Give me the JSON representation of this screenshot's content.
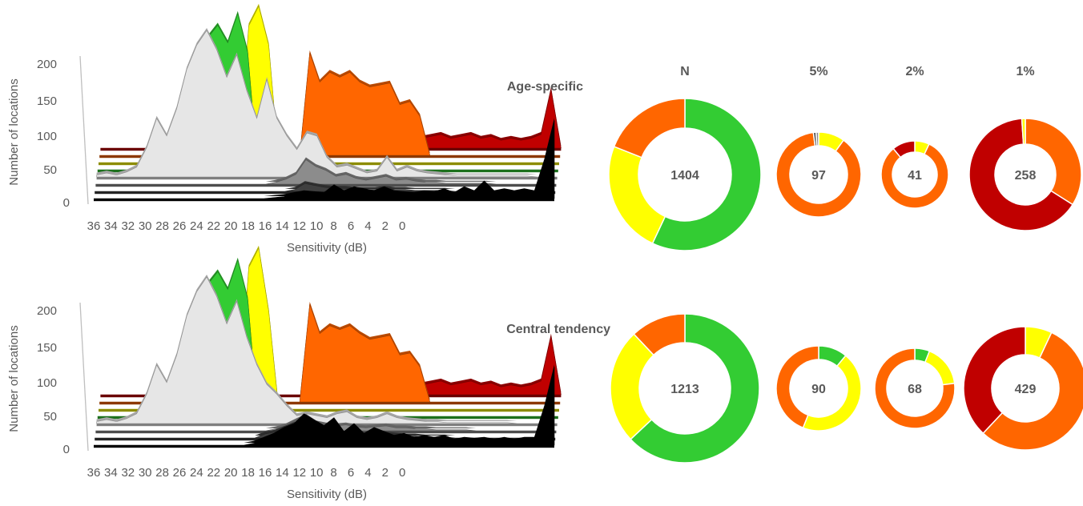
{
  "colors": {
    "green": "#33cc33",
    "yellow": "#ffff00",
    "orange": "#ff6600",
    "darkred": "#c00000",
    "lightgray": "#e6e6e6",
    "gray": "#8c8c8c",
    "darkgray": "#404040",
    "black": "#000000",
    "green_line": "#339933",
    "yellow_line": "#b8b800",
    "orange_line": "#c05000",
    "red_line": "#900000"
  },
  "column_headers": [
    "N",
    "5%",
    "2%",
    "1%"
  ],
  "chart_data": [
    {
      "type": "area",
      "title": "Age-specific",
      "xlabel": "Sensitivity (dB)",
      "ylabel": "Number of locations",
      "x_ticks": [
        "36",
        "34",
        "32",
        "30",
        "28",
        "26",
        "24",
        "22",
        "20",
        "18",
        "16",
        "14",
        "12",
        "10",
        "8",
        "6",
        "4",
        "2",
        "0"
      ],
      "y_ticks": [
        "0",
        "50",
        "100",
        "150",
        "200"
      ],
      "ylim": [
        0,
        200
      ],
      "series": [
        {
          "color": "darkred",
          "values": [
            0,
            0,
            0,
            0,
            0,
            0,
            0,
            0,
            0,
            0,
            0,
            0,
            0,
            0,
            0,
            0,
            0,
            0,
            0,
            0,
            0,
            0,
            0,
            0,
            0,
            0,
            0,
            0,
            0,
            2,
            8,
            12,
            10,
            12,
            14,
            10,
            12,
            14,
            10,
            12,
            8,
            10,
            8,
            10,
            14,
            60,
            0
          ]
        },
        {
          "color": "orange",
          "values": [
            0,
            0,
            0,
            0,
            0,
            0,
            0,
            0,
            0,
            0,
            0,
            0,
            0,
            0,
            0,
            0,
            0,
            0,
            0,
            0,
            0,
            105,
            75,
            85,
            80,
            85,
            75,
            70,
            72,
            74,
            52,
            55,
            40,
            0,
            0,
            0,
            0,
            0,
            0,
            0,
            0,
            0,
            0,
            0,
            0,
            0,
            0
          ]
        },
        {
          "color": "yellow",
          "values": [
            0,
            0,
            0,
            0,
            0,
            0,
            0,
            0,
            0,
            0,
            0,
            0,
            0,
            0,
            0,
            140,
            160,
            120,
            0,
            0,
            0,
            0,
            0,
            0,
            0,
            0,
            0,
            0,
            0,
            0,
            0,
            0,
            0,
            0,
            0,
            0,
            0,
            0,
            0,
            0,
            0,
            0,
            0,
            0,
            0,
            0,
            0
          ]
        },
        {
          "color": "green",
          "values": [
            0,
            0,
            0,
            0,
            0,
            0,
            25,
            15,
            40,
            80,
            108,
            135,
            148,
            130,
            160,
            120,
            0,
            0,
            0,
            0,
            0,
            0,
            0,
            0,
            0,
            0,
            0,
            0,
            0,
            0,
            0,
            0,
            0,
            0,
            0,
            0,
            0,
            0,
            0,
            0,
            0,
            0,
            0,
            0,
            0,
            0,
            0
          ]
        },
        {
          "color": "lightgray",
          "values": [
            2,
            4,
            2,
            5,
            10,
            30,
            60,
            42,
            70,
            110,
            135,
            150,
            130,
            102,
            125,
            88,
            60,
            100,
            60,
            42,
            28,
            45,
            42,
            20,
            10,
            12,
            8,
            4,
            6,
            20,
            6,
            10,
            6,
            4,
            3,
            2,
            1,
            1,
            1,
            1,
            1,
            1,
            1,
            1,
            0,
            0,
            0
          ]
        },
        {
          "color": "gray",
          "values": [
            0,
            0,
            0,
            0,
            0,
            0,
            0,
            0,
            0,
            0,
            0,
            0,
            0,
            0,
            0,
            0,
            0,
            0,
            2,
            5,
            10,
            25,
            18,
            14,
            8,
            10,
            6,
            4,
            6,
            8,
            4,
            5,
            3,
            2,
            2,
            1,
            1,
            1,
            1,
            1,
            0,
            0,
            0,
            0,
            0,
            0,
            0
          ]
        },
        {
          "color": "darkgray",
          "values": [
            0,
            0,
            0,
            0,
            0,
            0,
            0,
            0,
            0,
            0,
            0,
            0,
            0,
            0,
            0,
            0,
            0,
            0,
            0,
            0,
            2,
            8,
            6,
            4,
            3,
            3,
            2,
            2,
            2,
            3,
            2,
            2,
            1,
            1,
            1,
            1,
            0,
            0,
            0,
            0,
            0,
            0,
            0,
            0,
            0,
            0,
            0
          ]
        },
        {
          "color": "black",
          "values": [
            0,
            0,
            0,
            0,
            0,
            0,
            0,
            0,
            0,
            0,
            0,
            0,
            0,
            0,
            0,
            0,
            0,
            0,
            1,
            2,
            4,
            6,
            5,
            4,
            12,
            6,
            10,
            8,
            6,
            10,
            6,
            5,
            4,
            6,
            5,
            8,
            4,
            10,
            6,
            16,
            6,
            8,
            6,
            8,
            6,
            38,
            80
          ]
        }
      ],
      "rings": [
        {
          "label": "1404",
          "slices": [
            {
              "color": "green",
              "value": 57
            },
            {
              "color": "yellow",
              "value": 24
            },
            {
              "color": "orange",
              "value": 19
            }
          ]
        },
        {
          "label": "97",
          "slices": [
            {
              "color": "yellow",
              "value": 10
            },
            {
              "color": "orange",
              "value": 88
            },
            {
              "color": "darkgray",
              "value": 1
            },
            {
              "color": "gray",
              "value": 1
            }
          ]
        },
        {
          "label": "41",
          "slices": [
            {
              "color": "yellow",
              "value": 7
            },
            {
              "color": "orange",
              "value": 82
            },
            {
              "color": "darkred",
              "value": 11
            }
          ]
        },
        {
          "label": "258",
          "slices": [
            {
              "color": "orange",
              "value": 34
            },
            {
              "color": "darkred",
              "value": 65
            },
            {
              "color": "yellow",
              "value": 1
            }
          ]
        }
      ]
    },
    {
      "type": "area",
      "title": "Central tendency",
      "xlabel": "Sensitivity (dB)",
      "ylabel": "Number of locations",
      "x_ticks": [
        "36",
        "34",
        "32",
        "30",
        "28",
        "26",
        "24",
        "22",
        "20",
        "18",
        "16",
        "14",
        "12",
        "10",
        "8",
        "6",
        "4",
        "2",
        "0"
      ],
      "y_ticks": [
        "0",
        "50",
        "100",
        "150",
        "200"
      ],
      "ylim": [
        0,
        200
      ],
      "series": [
        {
          "color": "darkred",
          "values": [
            0,
            0,
            0,
            0,
            0,
            0,
            0,
            0,
            0,
            0,
            0,
            0,
            0,
            0,
            0,
            0,
            0,
            0,
            0,
            0,
            0,
            0,
            0,
            0,
            0,
            0,
            0,
            0,
            0,
            2,
            8,
            12,
            10,
            12,
            14,
            10,
            12,
            14,
            10,
            12,
            8,
            10,
            8,
            10,
            14,
            60,
            0
          ]
        },
        {
          "color": "orange",
          "values": [
            0,
            0,
            0,
            0,
            0,
            0,
            0,
            0,
            0,
            0,
            0,
            0,
            0,
            0,
            0,
            0,
            0,
            0,
            0,
            0,
            0,
            100,
            70,
            78,
            74,
            78,
            70,
            64,
            66,
            68,
            48,
            50,
            36,
            0,
            0,
            0,
            0,
            0,
            0,
            0,
            0,
            0,
            0,
            0,
            0,
            0,
            0
          ]
        },
        {
          "color": "yellow",
          "values": [
            0,
            0,
            0,
            0,
            0,
            0,
            0,
            0,
            0,
            0,
            0,
            0,
            0,
            0,
            0,
            145,
            165,
            100,
            0,
            0,
            0,
            0,
            0,
            0,
            0,
            0,
            0,
            0,
            0,
            0,
            0,
            0,
            0,
            0,
            0,
            0,
            0,
            0,
            0,
            0,
            0,
            0,
            0,
            0,
            0,
            0,
            0
          ]
        },
        {
          "color": "green",
          "values": [
            0,
            0,
            0,
            0,
            0,
            0,
            25,
            15,
            40,
            80,
            108,
            135,
            148,
            130,
            160,
            120,
            0,
            0,
            0,
            0,
            0,
            0,
            0,
            0,
            0,
            0,
            0,
            0,
            0,
            0,
            0,
            0,
            0,
            0,
            0,
            0,
            0,
            0,
            0,
            0,
            0,
            0,
            0,
            0,
            0,
            0,
            0
          ]
        },
        {
          "color": "lightgray",
          "values": [
            2,
            4,
            2,
            5,
            10,
            30,
            60,
            42,
            70,
            110,
            135,
            150,
            130,
            102,
            125,
            88,
            60,
            40,
            30,
            18,
            8,
            10,
            8,
            6,
            10,
            12,
            6,
            4,
            6,
            10,
            6,
            4,
            3,
            2,
            2,
            1,
            1,
            1,
            1,
            1,
            1,
            1,
            0,
            0,
            0,
            0,
            0
          ]
        },
        {
          "color": "gray",
          "values": [
            0,
            0,
            0,
            0,
            0,
            0,
            0,
            0,
            0,
            0,
            0,
            0,
            0,
            0,
            0,
            0,
            0,
            0,
            2,
            5,
            10,
            15,
            8,
            6,
            5,
            6,
            4,
            3,
            4,
            5,
            3,
            3,
            2,
            2,
            1,
            1,
            1,
            1,
            0,
            0,
            0,
            0,
            0,
            0,
            0,
            0,
            0
          ]
        },
        {
          "color": "darkgray",
          "values": [
            0,
            0,
            0,
            0,
            0,
            0,
            0,
            0,
            0,
            0,
            0,
            0,
            0,
            0,
            0,
            0,
            0,
            4,
            6,
            10,
            14,
            12,
            8,
            6,
            4,
            4,
            3,
            3,
            3,
            4,
            3,
            2,
            2,
            1,
            1,
            1,
            0,
            0,
            0,
            0,
            0,
            0,
            0,
            0,
            0,
            0,
            0
          ]
        },
        {
          "color": "black",
          "values": [
            0,
            0,
            0,
            0,
            0,
            0,
            0,
            0,
            0,
            0,
            0,
            0,
            0,
            0,
            0,
            0,
            2,
            6,
            10,
            16,
            20,
            30,
            24,
            18,
            26,
            12,
            20,
            10,
            16,
            12,
            8,
            10,
            6,
            8,
            6,
            8,
            4,
            6,
            5,
            6,
            4,
            6,
            4,
            6,
            6,
            38,
            80
          ]
        }
      ],
      "rings": [
        {
          "label": "1213",
          "slices": [
            {
              "color": "green",
              "value": 63
            },
            {
              "color": "yellow",
              "value": 25
            },
            {
              "color": "orange",
              "value": 12
            }
          ]
        },
        {
          "label": "90",
          "slices": [
            {
              "color": "green",
              "value": 11
            },
            {
              "color": "yellow",
              "value": 45
            },
            {
              "color": "orange",
              "value": 44
            }
          ]
        },
        {
          "label": "68",
          "slices": [
            {
              "color": "green",
              "value": 6
            },
            {
              "color": "yellow",
              "value": 17
            },
            {
              "color": "orange",
              "value": 77
            }
          ]
        },
        {
          "label": "429",
          "slices": [
            {
              "color": "yellow",
              "value": 7
            },
            {
              "color": "orange",
              "value": 55
            },
            {
              "color": "darkred",
              "value": 38
            }
          ]
        }
      ]
    }
  ]
}
